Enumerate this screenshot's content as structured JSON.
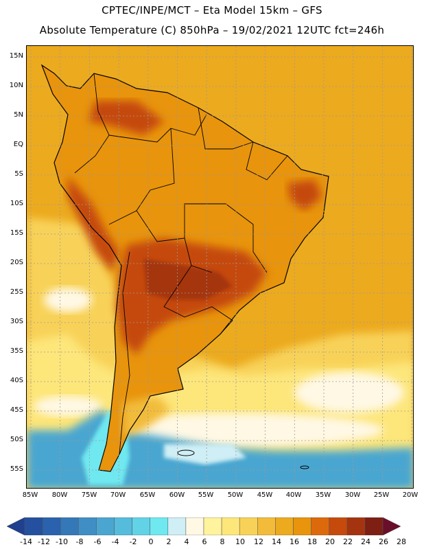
{
  "header": {
    "line1": "CPTEC/INPE/MCT –  Eta Model 15km – GFS",
    "line2": "Absolute Temperature (C) 850hPa – 19/02/2021 12UTC fct=246h"
  },
  "axes": {
    "lat_labels": [
      "15N",
      "10N",
      "5N",
      "EQ",
      "5S",
      "10S",
      "15S",
      "20S",
      "25S",
      "30S",
      "35S",
      "40S",
      "45S",
      "50S",
      "55S"
    ],
    "lon_labels": [
      "85W",
      "80W",
      "75W",
      "70W",
      "65W",
      "60W",
      "55W",
      "50W",
      "45W",
      "40W",
      "35W",
      "30W",
      "25W",
      "20W"
    ]
  },
  "colorbar": {
    "labels": [
      "-14",
      "-12",
      "-10",
      "-8",
      "-6",
      "-4",
      "-2",
      "0",
      "2",
      "4",
      "6",
      "8",
      "10",
      "12",
      "14",
      "16",
      "18",
      "20",
      "22",
      "24",
      "26",
      "28"
    ],
    "colors": [
      "#1f3f8f",
      "#24509f",
      "#2a62ad",
      "#3478b8",
      "#3f8ec4",
      "#4aa6d0",
      "#55bcdc",
      "#62d2e6",
      "#6fe8ef",
      "#cfeef5",
      "#fff8e4",
      "#fff39e",
      "#fde67a",
      "#f8d258",
      "#f2bc3a",
      "#ecaa1e",
      "#e8940c",
      "#dc6a0c",
      "#c54a0c",
      "#a4340f",
      "#7e1f14",
      "#6a0f2b"
    ]
  },
  "map": {
    "ocean_color": "#ecaa1e",
    "regions": {
      "atlantic_south": "#f8d258",
      "cool_belt": "#fde67a",
      "cool_patch": "#fff8e4",
      "cold_south": "#4aa6d0",
      "cold_core": "#6fe8ef",
      "land_warm": "#e8940c",
      "land_hot": "#c54a0c",
      "land_hotter": "#a4340f"
    }
  }
}
